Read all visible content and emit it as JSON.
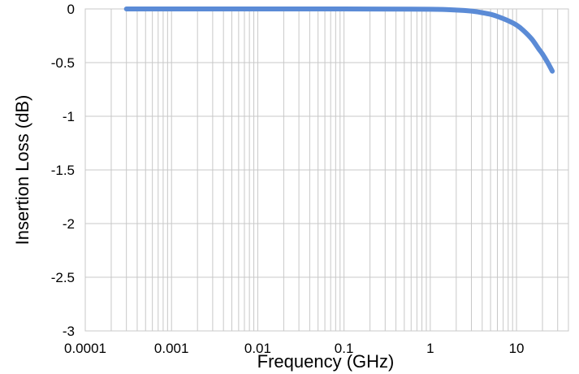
{
  "chart_data": {
    "type": "line",
    "title": "",
    "xlabel": "Frequency (GHz)",
    "ylabel": "Insertion Loss (dB)",
    "x_scale": "log",
    "xlim": [
      0.0001,
      40
    ],
    "ylim": [
      -3,
      0
    ],
    "x_ticks": [
      0.0001,
      0.001,
      0.01,
      0.1,
      1,
      10
    ],
    "x_tick_labels": [
      "0.0001",
      "0.001",
      "0.01",
      "0.1",
      "1",
      "10"
    ],
    "y_ticks": [
      0,
      -0.5,
      -1,
      -1.5,
      -2,
      -2.5,
      -3
    ],
    "y_tick_labels": [
      "0",
      "-0.5",
      "-1",
      "-1.5",
      "-2",
      "-2.5",
      "-3"
    ],
    "grid": true,
    "legend": "none",
    "series": [
      {
        "color": "#5b8bd6",
        "x": [
          0.0003,
          0.001,
          0.01,
          0.1,
          1,
          2,
          3,
          4,
          5,
          6,
          8,
          10,
          12,
          15,
          18,
          20,
          23,
          26
        ],
        "y": [
          0,
          0,
          0,
          0,
          -0.003,
          -0.01,
          -0.02,
          -0.035,
          -0.05,
          -0.07,
          -0.11,
          -0.15,
          -0.2,
          -0.28,
          -0.37,
          -0.42,
          -0.5,
          -0.58
        ]
      }
    ]
  }
}
